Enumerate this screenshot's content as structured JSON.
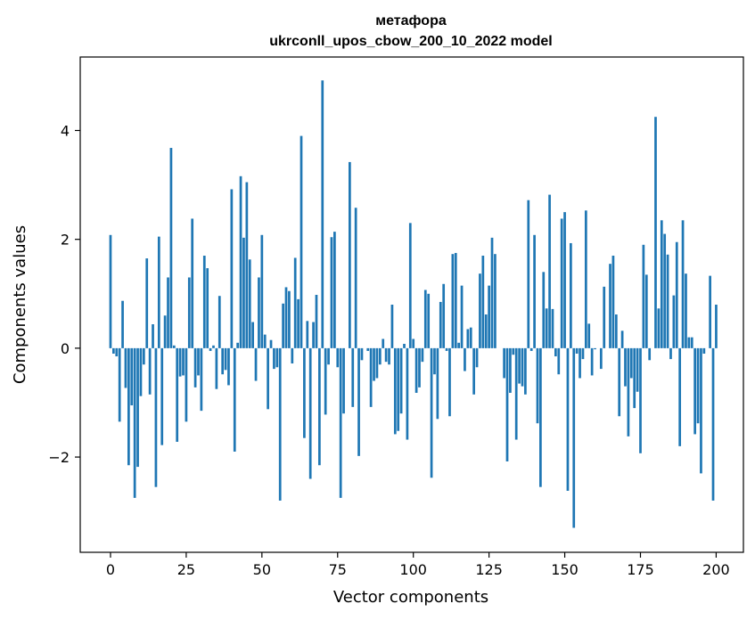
{
  "chart_data": {
    "type": "bar",
    "title_line1": "метафора",
    "title_line2": "ukrconll_upos_cbow_200_10_2022 model",
    "xlabel": "Vector components",
    "ylabel": "Components values",
    "xlim": [
      -10,
      209
    ],
    "ylim": [
      -3.75,
      5.35
    ],
    "x_ticks": [
      0,
      25,
      50,
      75,
      100,
      125,
      150,
      175,
      200
    ],
    "y_ticks": [
      -2,
      0,
      2,
      4
    ],
    "y_tick_labels": [
      "−2",
      "0",
      "2",
      "4"
    ],
    "grid": false,
    "bar_color": "#1f77b4",
    "values": [
      2.08,
      -0.1,
      -0.15,
      -1.35,
      0.87,
      -0.73,
      -2.15,
      -1.05,
      -2.75,
      -2.18,
      -0.88,
      -0.3,
      1.65,
      -0.85,
      0.44,
      -2.55,
      2.05,
      -1.78,
      0.6,
      1.3,
      3.68,
      0.05,
      -1.72,
      -0.52,
      -0.5,
      -1.35,
      1.3,
      2.38,
      -0.72,
      -0.5,
      -1.15,
      1.7,
      1.47,
      -0.05,
      0.05,
      -0.75,
      0.96,
      -0.48,
      -0.4,
      -0.68,
      2.92,
      -1.9,
      0.1,
      3.16,
      2.03,
      3.05,
      1.63,
      0.48,
      -0.6,
      1.3,
      2.08,
      0.25,
      -1.12,
      0.15,
      -0.38,
      -0.35,
      -2.8,
      0.82,
      1.12,
      1.05,
      -0.28,
      1.66,
      0.9,
      3.9,
      -1.65,
      0.5,
      -2.4,
      0.48,
      0.98,
      -2.15,
      4.92,
      -1.22,
      -0.3,
      2.04,
      2.14,
      -0.35,
      -2.75,
      -1.2,
      0.0,
      3.42,
      -1.08,
      2.58,
      -1.98,
      -0.22,
      0.0,
      -0.05,
      -1.08,
      -0.6,
      -0.55,
      -0.3,
      0.17,
      -0.25,
      -0.3,
      0.8,
      -1.58,
      -1.52,
      -1.2,
      0.08,
      -1.68,
      2.3,
      0.17,
      -0.82,
      -0.72,
      -0.25,
      1.07,
      1.0,
      -2.38,
      -0.48,
      -1.3,
      0.85,
      1.18,
      -0.05,
      -1.25,
      1.73,
      1.75,
      0.1,
      1.15,
      -0.42,
      0.35,
      0.38,
      -0.85,
      -0.35,
      1.37,
      1.7,
      0.62,
      1.15,
      2.03,
      1.73,
      0.0,
      0.0,
      -0.55,
      -2.08,
      -0.82,
      -0.12,
      -1.68,
      -0.65,
      -0.7,
      -0.85,
      2.72,
      -0.05,
      2.08,
      -1.38,
      -2.55,
      1.4,
      0.73,
      2.82,
      0.72,
      -0.15,
      -0.48,
      2.38,
      2.5,
      -2.62,
      1.93,
      -3.3,
      -0.1,
      -0.55,
      -0.2,
      2.53,
      0.45,
      -0.5,
      -0.02,
      0.0,
      -0.38,
      1.13,
      0.0,
      1.55,
      1.7,
      0.62,
      -1.25,
      0.32,
      -0.7,
      -1.62,
      -0.55,
      -1.1,
      -0.8,
      -1.93,
      1.9,
      1.35,
      -0.22,
      0.0,
      4.25,
      0.73,
      2.35,
      2.1,
      1.72,
      -0.2,
      0.97,
      1.95,
      -1.8,
      2.35,
      1.37,
      0.2,
      0.2,
      -1.58,
      -1.38,
      -2.3,
      -0.1,
      0.0,
      1.33,
      -2.8,
      0.8
    ]
  }
}
